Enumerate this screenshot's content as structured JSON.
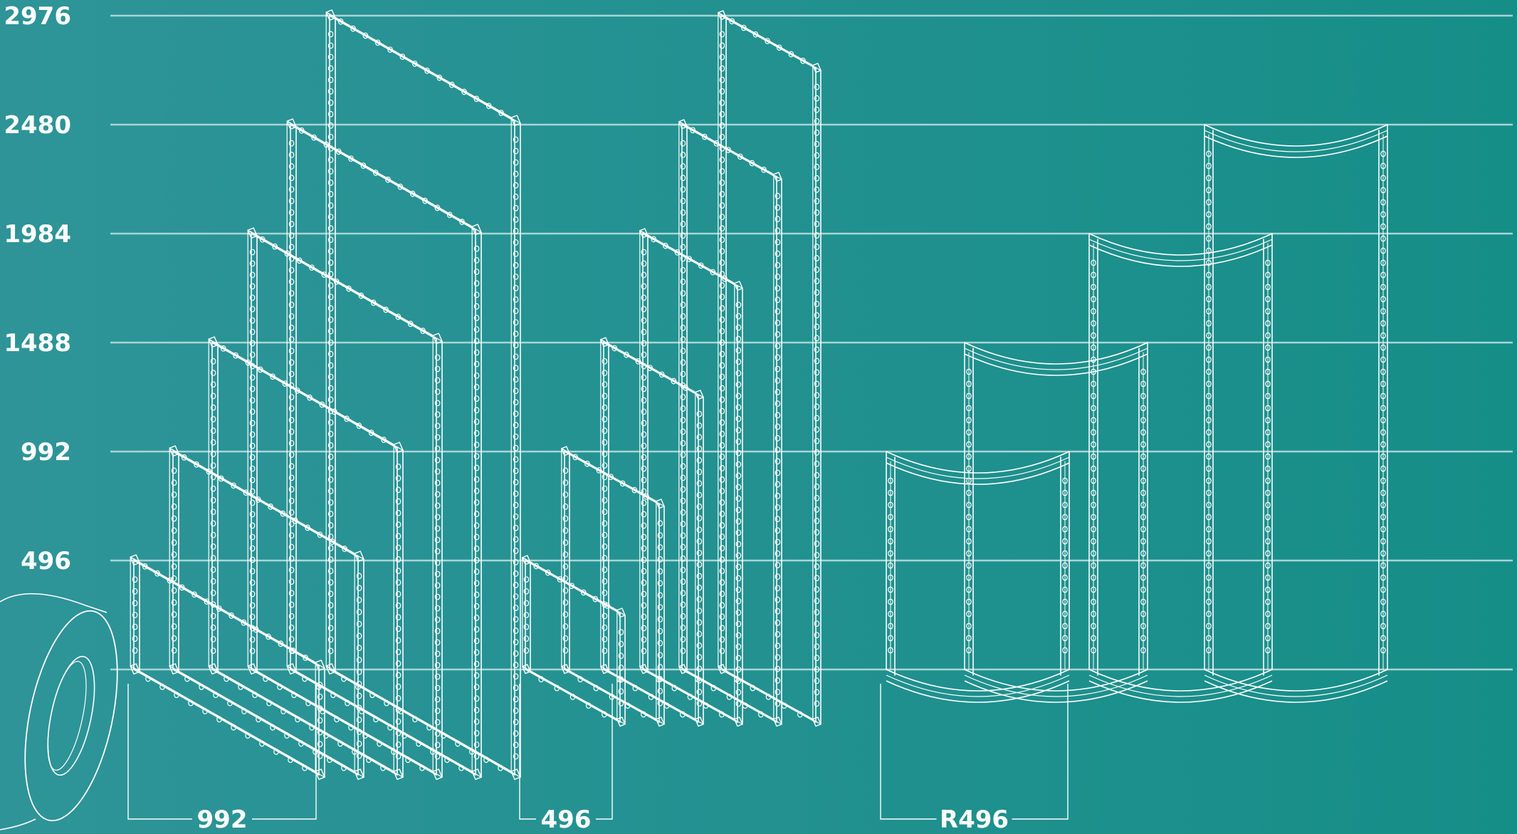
{
  "colors": {
    "background_left": "#2e9498",
    "background_right": "#168e88",
    "line": "#ffffff",
    "grid": "#a7d6d5"
  },
  "y_axis": {
    "unit": "",
    "ticks": [
      {
        "value": 0,
        "label": ""
      },
      {
        "value": 496,
        "label": "496"
      },
      {
        "value": 992,
        "label": "992"
      },
      {
        "value": 1488,
        "label": "1488"
      },
      {
        "value": 1984,
        "label": "1984"
      },
      {
        "value": 2480,
        "label": "2480"
      },
      {
        "value": 2976,
        "label": "2976"
      }
    ]
  },
  "groups": [
    {
      "id": "straight-992",
      "kind": "straight",
      "dimension_label": "992",
      "frame_width": 992,
      "frame_heights": [
        496,
        992,
        1488,
        1984,
        2480,
        2976
      ]
    },
    {
      "id": "straight-496",
      "kind": "straight",
      "dimension_label": "496",
      "frame_width": 496,
      "frame_heights": [
        496,
        992,
        1488,
        1984,
        2480,
        2976
      ]
    },
    {
      "id": "curved-r496",
      "kind": "curved",
      "dimension_label": "R496",
      "radius": 496,
      "frame_heights": [
        992,
        1488,
        1984,
        2480
      ]
    }
  ],
  "accessory": {
    "name": "fabric-roll",
    "icon": "fabric-roll-icon"
  }
}
